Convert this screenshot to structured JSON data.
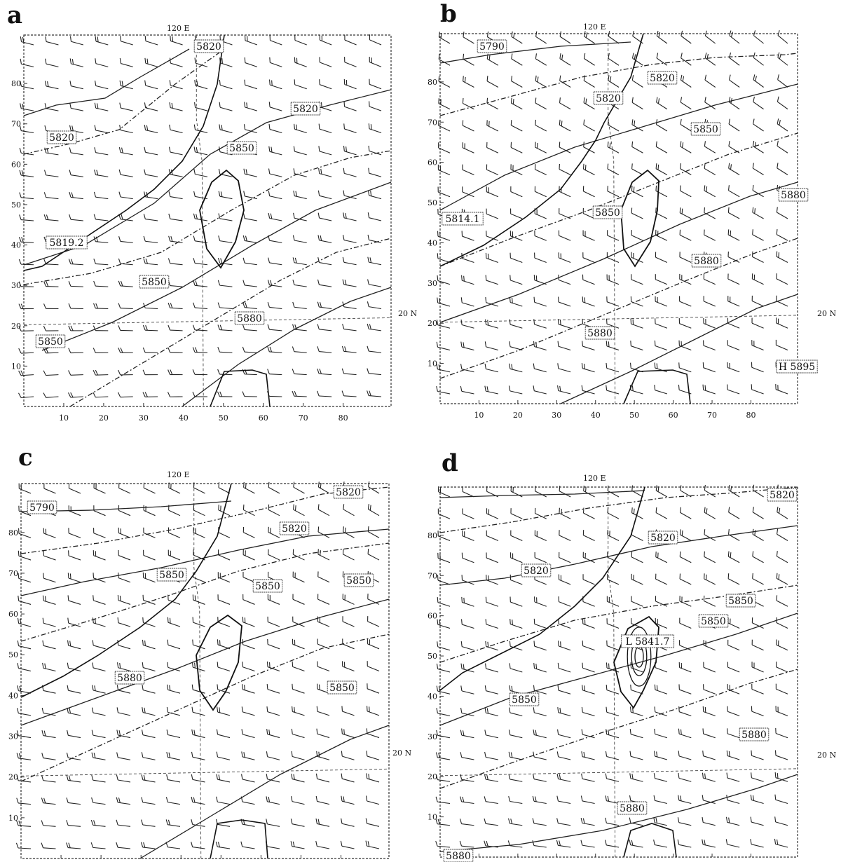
{
  "panels": [
    {
      "id": "a",
      "label": "a",
      "top_lon_label": "120 E",
      "side_lat_label": "20 N",
      "contour_labels": [
        "5820",
        "5820",
        "5820",
        "5850",
        "5819.2",
        "5850",
        "5880",
        "5850"
      ],
      "rotation_deg": 14,
      "closed_highs": []
    },
    {
      "id": "b",
      "label": "b",
      "top_lon_label": "120 E",
      "side_lat_label": "20 N",
      "contour_labels": [
        "5790",
        "5820",
        "5820",
        "5850",
        "5814.1",
        "5850",
        "5880",
        "5880",
        "5880",
        "H 5895"
      ],
      "rotation_deg": 30,
      "closed_highs": []
    },
    {
      "id": "c",
      "label": "c",
      "top_lon_label": "120 E",
      "side_lat_label": "20 N",
      "contour_labels": [
        "5790",
        "5820",
        "5820",
        "5850",
        "5850",
        "5850",
        "5880",
        "5850"
      ],
      "rotation_deg": 22,
      "closed_highs": []
    },
    {
      "id": "d",
      "label": "d",
      "top_lon_label": "120 E",
      "side_lat_label": "20 N",
      "contour_labels": [
        "5820",
        "5820",
        "5820",
        "5850",
        "5850",
        "L 5841.7",
        "5850",
        "5880",
        "5880",
        "5880"
      ],
      "rotation_deg": 24,
      "closed_highs": [
        "L"
      ]
    }
  ],
  "x_ticks": [
    "10",
    "20",
    "30",
    "40",
    "50",
    "60",
    "70",
    "80"
  ],
  "y_ticks": [
    "10",
    "20",
    "30",
    "40",
    "50",
    "60",
    "70",
    "80"
  ]
}
